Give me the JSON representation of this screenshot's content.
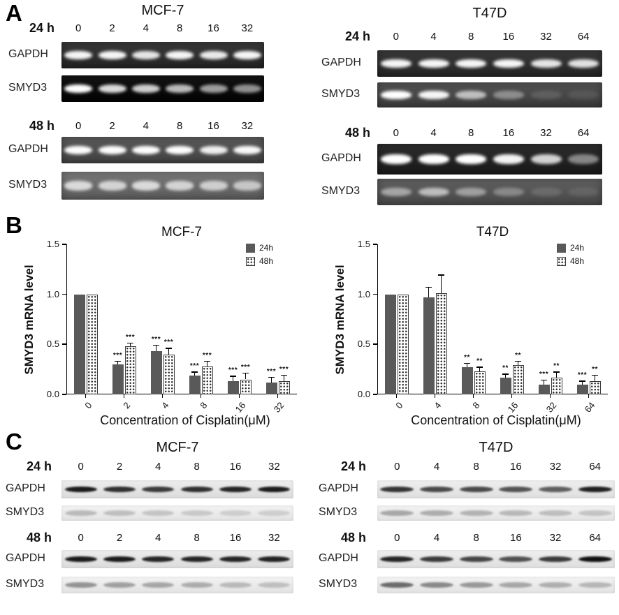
{
  "panel_a": {
    "label": "A",
    "columns": [
      {
        "title": "MCF-7",
        "groups": [
          {
            "time": "24 h",
            "concentrations": [
              "0",
              "2",
              "4",
              "8",
              "16",
              "32"
            ],
            "rows": [
              {
                "target": "GAPDH",
                "bg": "#2b2b2b",
                "band": "#f5f5f5",
                "intensities": [
                  1,
                  1,
                  0.92,
                  1,
                  0.95,
                  1
                ]
              },
              {
                "target": "SMYD3",
                "bg": "#030303",
                "band": "#ffffff",
                "intensities": [
                  1,
                  0.85,
                  0.8,
                  0.72,
                  0.6,
                  0.55
                ]
              }
            ]
          },
          {
            "time": "48 h",
            "concentrations": [
              "0",
              "2",
              "4",
              "8",
              "16",
              "32"
            ],
            "rows": [
              {
                "target": "GAPDH",
                "bg": "#4f4f4f",
                "band": "#fdfdfd",
                "intensities": [
                  1,
                  1,
                  1,
                  1,
                  0.92,
                  0.98
                ]
              },
              {
                "target": "SMYD3",
                "bg": "#6f6f6f",
                "band": "#eeeeee",
                "intensities": [
                  0.85,
                  0.8,
                  0.85,
                  0.8,
                  0.76,
                  0.7
                ]
              }
            ]
          }
        ]
      },
      {
        "title": "T47D",
        "groups": [
          {
            "time": "24 h",
            "concentrations": [
              "0",
              "4",
              "8",
              "16",
              "32",
              "64"
            ],
            "rows": [
              {
                "target": "GAPDH",
                "bg": "#2b2b2b",
                "band": "#f5f5f5",
                "intensities": [
                  1,
                  1,
                  1,
                  1,
                  0.92,
                  0.9
                ]
              },
              {
                "target": "SMYD3",
                "bg": "#474747",
                "band": "#ffffff",
                "intensities": [
                  1,
                  0.95,
                  0.65,
                  0.38,
                  0.12,
                  0.08
                ]
              }
            ]
          },
          {
            "time": "48 h",
            "concentrations": [
              "0",
              "4",
              "8",
              "16",
              "32",
              "64"
            ],
            "rows": [
              {
                "target": "GAPDH",
                "bg": "#1d1d1d",
                "band": "#ffffff",
                "intensities": [
                  1,
                  1,
                  1,
                  0.95,
                  0.8,
                  0.45
                ]
              },
              {
                "target": "SMYD3",
                "bg": "#565656",
                "band": "#e9e9e9",
                "intensities": [
                  0.55,
                  0.7,
                  0.5,
                  0.35,
                  0.15,
                  0.1
                ]
              }
            ]
          }
        ]
      }
    ]
  },
  "panel_b": {
    "label": "B"
  },
  "chart_data": [
    {
      "type": "bar",
      "title": "MCF-7",
      "categories": [
        "0",
        "2",
        "4",
        "8",
        "16",
        "32"
      ],
      "series": [
        {
          "name": "24h",
          "style": "solid",
          "values": [
            1.0,
            0.3,
            0.43,
            0.19,
            0.13,
            0.12
          ],
          "errors": [
            0,
            0.03,
            0.06,
            0.03,
            0.05,
            0.05
          ],
          "significance": [
            "",
            "***",
            "***",
            "***",
            "***",
            "***"
          ]
        },
        {
          "name": "48h",
          "style": "checker",
          "values": [
            1.0,
            0.48,
            0.4,
            0.28,
            0.15,
            0.13
          ],
          "errors": [
            0,
            0.03,
            0.06,
            0.05,
            0.06,
            0.06
          ],
          "significance": [
            "",
            "***",
            "***",
            "***",
            "***",
            "***"
          ]
        }
      ],
      "ylabel": "SMYD3 mRNA level",
      "xlabel": "Concentration of Cisplatin(μM)",
      "ylim": [
        0,
        1.5
      ],
      "yticks": [
        0,
        0.5,
        1.0,
        1.5
      ],
      "legend_position": "top-right",
      "colors": {
        "solid": "#595959",
        "pattern_fill": "#ffffff",
        "pattern_dot": "#2d2d2d"
      }
    },
    {
      "type": "bar",
      "title": "T47D",
      "categories": [
        "0",
        "4",
        "8",
        "16",
        "32",
        "64"
      ],
      "series": [
        {
          "name": "24h",
          "style": "solid",
          "values": [
            1.0,
            0.97,
            0.27,
            0.17,
            0.1,
            0.1
          ],
          "errors": [
            0,
            0.1,
            0.04,
            0.03,
            0.04,
            0.03
          ],
          "significance": [
            "",
            "",
            "**",
            "**",
            "***",
            "***"
          ]
        },
        {
          "name": "48h",
          "style": "checker",
          "values": [
            1.0,
            1.01,
            0.23,
            0.29,
            0.17,
            0.13
          ],
          "errors": [
            0,
            0.18,
            0.04,
            0.04,
            0.05,
            0.06
          ],
          "significance": [
            "",
            "",
            "**",
            "**",
            "**",
            "**"
          ]
        }
      ],
      "ylabel": "SMYD3 mRNA level",
      "xlabel": "Concentration of Cisplatin(μM)",
      "ylim": [
        0,
        1.5
      ],
      "yticks": [
        0,
        0.5,
        1.0,
        1.5
      ],
      "legend_position": "top-right",
      "colors": {
        "solid": "#595959",
        "pattern_fill": "#ffffff",
        "pattern_dot": "#2d2d2d"
      }
    }
  ],
  "panel_c": {
    "label": "C",
    "columns": [
      {
        "title": "MCF-7",
        "groups": [
          {
            "time": "24 h",
            "concentrations": [
              "0",
              "2",
              "4",
              "8",
              "16",
              "32"
            ],
            "rows": [
              {
                "target": "GAPDH",
                "bg": "#e7e7e7",
                "band": "#111111",
                "intensities": [
                  0.95,
                  0.85,
                  0.8,
                  0.85,
                  0.9,
                  0.95
                ]
              },
              {
                "target": "SMYD3",
                "bg": "#efefef",
                "band": "#8a8a8a",
                "intensities": [
                  0.5,
                  0.45,
                  0.4,
                  0.35,
                  0.3,
                  0.3
                ]
              }
            ]
          },
          {
            "time": "48 h",
            "concentrations": [
              "0",
              "2",
              "4",
              "8",
              "16",
              "32"
            ],
            "rows": [
              {
                "target": "GAPDH",
                "bg": "#e7e7e7",
                "band": "#111111",
                "intensities": [
                  0.95,
                  0.95,
                  0.9,
                  0.9,
                  0.9,
                  0.92
                ]
              },
              {
                "target": "SMYD3",
                "bg": "#efefef",
                "band": "#6f6f6f",
                "intensities": [
                  0.7,
                  0.6,
                  0.55,
                  0.5,
                  0.4,
                  0.35
                ]
              }
            ]
          }
        ]
      },
      {
        "title": "T47D",
        "groups": [
          {
            "time": "24 h",
            "concentrations": [
              "0",
              "4",
              "8",
              "16",
              "32",
              "64"
            ],
            "rows": [
              {
                "target": "GAPDH",
                "bg": "#eaeaea",
                "band": "#161616",
                "intensities": [
                  0.85,
                  0.75,
                  0.75,
                  0.7,
                  0.65,
                  0.95
                ]
              },
              {
                "target": "SMYD3",
                "bg": "#efefef",
                "band": "#7a7a7a",
                "intensities": [
                  0.6,
                  0.55,
                  0.5,
                  0.45,
                  0.4,
                  0.35
                ]
              }
            ]
          },
          {
            "time": "48 h",
            "concentrations": [
              "0",
              "4",
              "8",
              "16",
              "32",
              "64"
            ],
            "rows": [
              {
                "target": "GAPDH",
                "bg": "#eaeaea",
                "band": "#111111",
                "intensities": [
                  0.9,
                  0.8,
                  0.75,
                  0.7,
                  0.8,
                  1
                ]
              },
              {
                "target": "SMYD3",
                "bg": "#efefef",
                "band": "#555555",
                "intensities": [
                  0.85,
                  0.65,
                  0.55,
                  0.45,
                  0.4,
                  0.35
                ]
              }
            ]
          }
        ]
      }
    ]
  }
}
